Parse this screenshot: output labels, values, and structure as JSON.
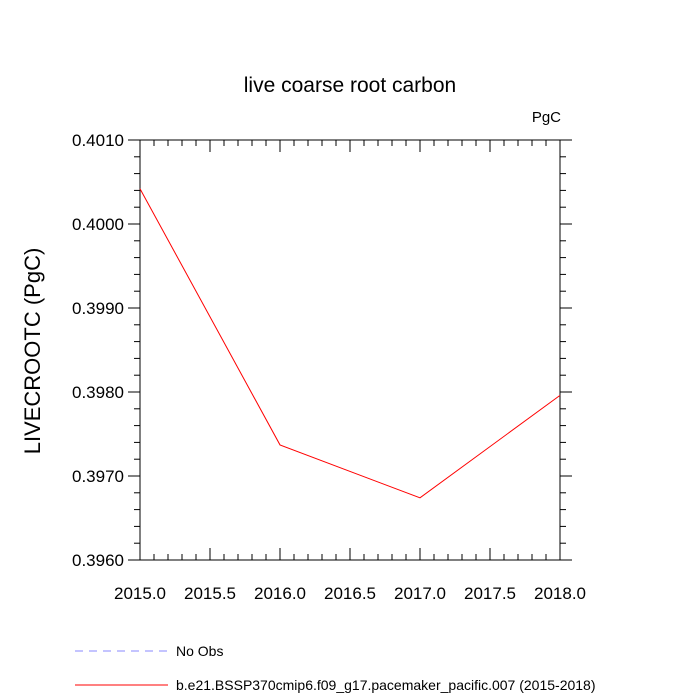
{
  "chart_data": {
    "type": "line",
    "title": "live coarse root carbon",
    "units": "PgC",
    "ylabel": "LIVECROOTC  (PgC)",
    "xlabel": "",
    "xlim": [
      2015.0,
      2018.0
    ],
    "ylim": [
      0.396,
      0.401
    ],
    "x_ticks": [
      2015.0,
      2015.5,
      2016.0,
      2016.5,
      2017.0,
      2017.5,
      2018.0
    ],
    "x_tick_labels": [
      "2015.0",
      "2015.5",
      "2016.0",
      "2016.5",
      "2017.0",
      "2017.5",
      "2018.0"
    ],
    "y_ticks": [
      0.396,
      0.397,
      0.398,
      0.399,
      0.4,
      0.401
    ],
    "y_tick_labels": [
      "0.3960",
      "0.3970",
      "0.3980",
      "0.3990",
      "0.4000",
      "0.4010"
    ],
    "grid": false,
    "legend_position": "bottom-left",
    "series": [
      {
        "name": "b.e21.BSSP370cmip6.f09_g17.pacemaker_pacific.007 (2015-2018)",
        "color": "#ff0000",
        "dash": "solid",
        "x": [
          2015.0,
          2016.0,
          2017.0,
          2018.0
        ],
        "values": [
          0.40042,
          0.39737,
          0.39674,
          0.39796
        ]
      }
    ],
    "legend": [
      {
        "label": "No Obs",
        "color": "#8888ff",
        "dash": "dashed"
      },
      {
        "label": "b.e21.BSSP370cmip6.f09_g17.pacemaker_pacific.007 (2015-2018)",
        "color": "#ff0000",
        "dash": "solid"
      }
    ]
  }
}
